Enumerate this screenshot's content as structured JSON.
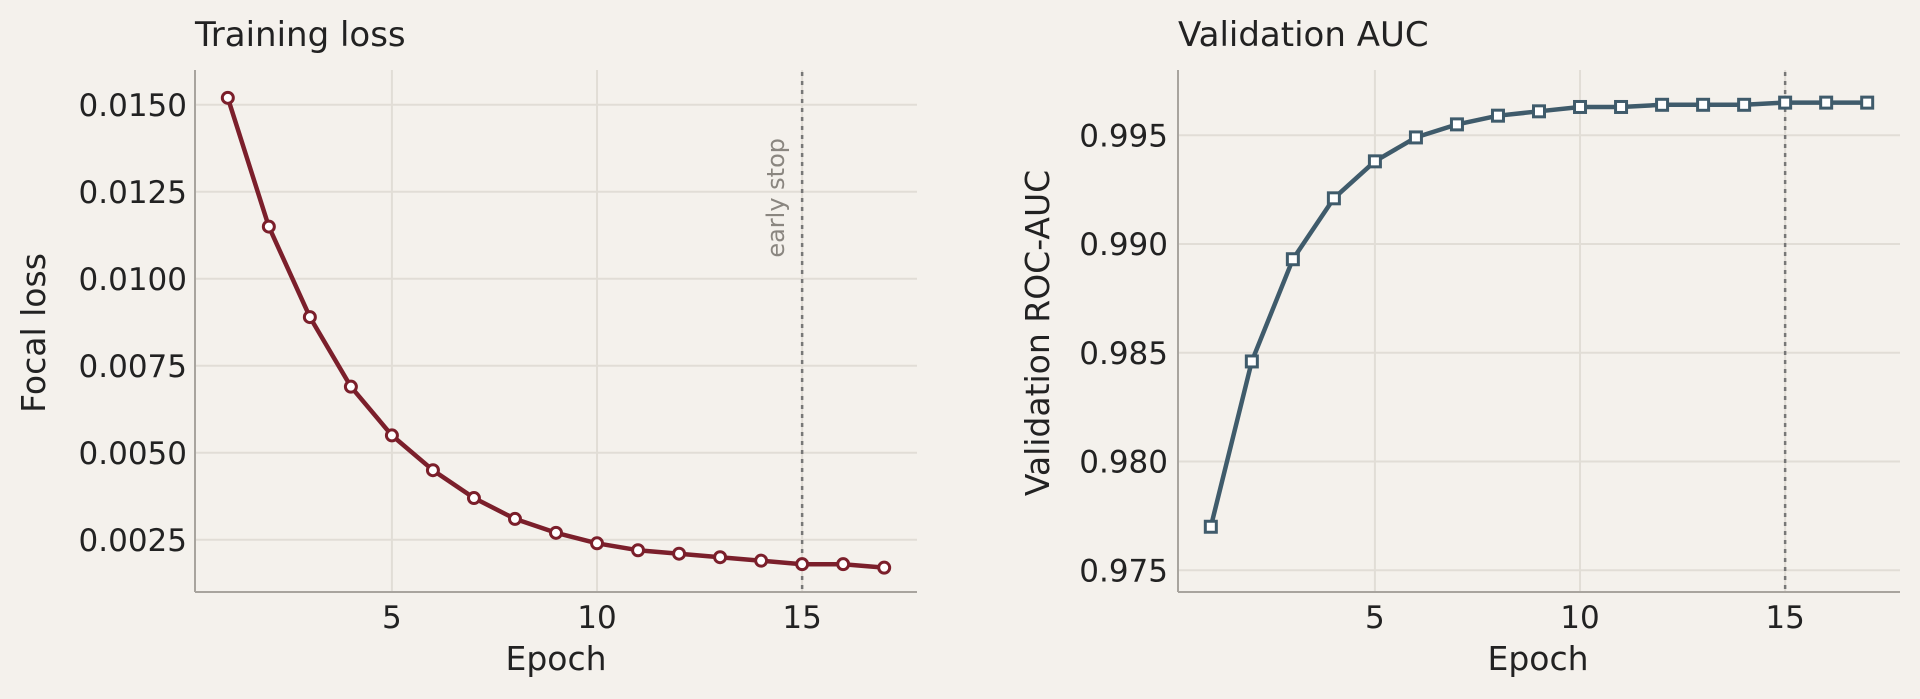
{
  "colors": {
    "background": "#f4f1ec",
    "grid": "#e1ddd6",
    "axis": "#a8a49e",
    "text": "#222222",
    "loss_series": "#7b1f2b",
    "auc_series": "#3f5b6b",
    "marker_fill": "#ffffff",
    "early_stop_line": "#777777"
  },
  "chart_data": [
    {
      "type": "line",
      "title": "Training loss",
      "xlabel": "Epoch",
      "ylabel": "Focal loss",
      "xlim": [
        0.2,
        17.8
      ],
      "ylim": [
        0.001,
        0.016
      ],
      "xticks": [
        5,
        10,
        15
      ],
      "xtick_labels": [
        "5",
        "10",
        "15"
      ],
      "yticks": [
        0.0025,
        0.005,
        0.0075,
        0.01,
        0.0125,
        0.015
      ],
      "ytick_labels": [
        "0.0025",
        "0.0050",
        "0.0075",
        "0.0100",
        "0.0125",
        "0.0150"
      ],
      "grid": true,
      "marker": "circle",
      "series_color": "#7b1f2b",
      "x": [
        1,
        2,
        3,
        4,
        5,
        6,
        7,
        8,
        9,
        10,
        11,
        12,
        13,
        14,
        15,
        16,
        17
      ],
      "y": [
        0.0152,
        0.0115,
        0.0089,
        0.0069,
        0.0055,
        0.0045,
        0.0037,
        0.0031,
        0.0027,
        0.0024,
        0.0022,
        0.0021,
        0.002,
        0.0019,
        0.0018,
        0.0018,
        0.0017
      ],
      "early_stop": {
        "x": 15,
        "label": "early stop"
      }
    },
    {
      "type": "line",
      "title": "Validation AUC",
      "xlabel": "Epoch",
      "ylabel": "Validation ROC-AUC",
      "xlim": [
        0.2,
        17.8
      ],
      "ylim": [
        0.974,
        0.998
      ],
      "xticks": [
        5,
        10,
        15
      ],
      "xtick_labels": [
        "5",
        "10",
        "15"
      ],
      "yticks": [
        0.975,
        0.98,
        0.985,
        0.99,
        0.995
      ],
      "ytick_labels": [
        "0.975",
        "0.980",
        "0.985",
        "0.990",
        "0.995"
      ],
      "grid": true,
      "marker": "square",
      "series_color": "#3f5b6b",
      "x": [
        1,
        2,
        3,
        4,
        5,
        6,
        7,
        8,
        9,
        10,
        11,
        12,
        13,
        14,
        15,
        16,
        17
      ],
      "y": [
        0.977,
        0.9846,
        0.9893,
        0.9921,
        0.9938,
        0.9949,
        0.9955,
        0.9959,
        0.9961,
        0.9963,
        0.9963,
        0.9964,
        0.9964,
        0.9964,
        0.9965,
        0.9965,
        0.9965
      ],
      "early_stop": {
        "x": 15
      }
    }
  ]
}
